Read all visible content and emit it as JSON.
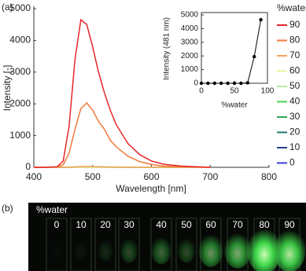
{
  "chart_data": [
    {
      "type": "line",
      "panel_label": "(a)",
      "xlabel": "Wavelength [nm]",
      "ylabel": "Intensity [-]",
      "xlim": [
        400,
        800
      ],
      "xticks": [
        400,
        500,
        600,
        700,
        800
      ],
      "ylim": [
        0,
        5000
      ],
      "yticks": [
        0,
        1000,
        2000,
        3000,
        4000,
        5000
      ],
      "legend_title": "%water",
      "legend": "right",
      "x": [
        400,
        420,
        440,
        450,
        460,
        470,
        480,
        490,
        500,
        510,
        520,
        530,
        540,
        560,
        580,
        600,
        620,
        650,
        700
      ],
      "series": [
        {
          "name": "90",
          "color": "#e8262a",
          "values": [
            0,
            0,
            20,
            200,
            1300,
            3400,
            4650,
            4500,
            3800,
            3000,
            2350,
            1800,
            1350,
            750,
            400,
            200,
            100,
            40,
            0
          ]
        },
        {
          "name": "80",
          "color": "#f07a3c",
          "values": [
            0,
            0,
            10,
            80,
            450,
            1200,
            1850,
            2030,
            1800,
            1450,
            1200,
            850,
            650,
            350,
            180,
            90,
            40,
            15,
            0
          ]
        },
        {
          "name": "70",
          "color": "#f4a15a",
          "values": [
            0,
            0,
            0,
            0,
            5,
            15,
            25,
            30,
            25,
            20,
            15,
            10,
            8,
            5,
            2,
            0,
            0,
            0,
            0
          ]
        },
        {
          "name": "60",
          "color": "#eef29c",
          "values": [
            0,
            0,
            0,
            0,
            0,
            0,
            0,
            0,
            0,
            0,
            0,
            0,
            0,
            0,
            0,
            0,
            0,
            0,
            0
          ]
        },
        {
          "name": "50",
          "color": "#b6ee9e",
          "values": [
            0,
            0,
            0,
            0,
            0,
            0,
            0,
            0,
            0,
            0,
            0,
            0,
            0,
            0,
            0,
            0,
            0,
            0,
            0
          ]
        },
        {
          "name": "40",
          "color": "#4fcf55",
          "values": [
            0,
            0,
            0,
            0,
            0,
            0,
            0,
            0,
            0,
            0,
            0,
            0,
            0,
            0,
            0,
            0,
            0,
            0,
            0
          ]
        },
        {
          "name": "30",
          "color": "#2aa858",
          "values": [
            0,
            0,
            0,
            0,
            0,
            0,
            0,
            0,
            0,
            0,
            0,
            0,
            0,
            0,
            0,
            0,
            0,
            0,
            0
          ]
        },
        {
          "name": "20",
          "color": "#1e7a6a",
          "values": [
            0,
            0,
            0,
            0,
            0,
            0,
            0,
            0,
            0,
            0,
            0,
            0,
            0,
            0,
            0,
            0,
            0,
            0,
            0
          ]
        },
        {
          "name": "10",
          "color": "#283c88",
          "values": [
            0,
            0,
            0,
            0,
            0,
            0,
            0,
            0,
            0,
            0,
            0,
            0,
            0,
            0,
            0,
            0,
            0,
            0,
            0
          ]
        },
        {
          "name": "0",
          "color": "#3a3ad8",
          "values": [
            0,
            0,
            0,
            0,
            0,
            0,
            0,
            0,
            0,
            0,
            0,
            0,
            0,
            0,
            0,
            0,
            0,
            0,
            0
          ]
        }
      ]
    },
    {
      "type": "line",
      "markers": true,
      "xlabel": "%water",
      "ylabel": "Intensity (481 nm)",
      "xlim": [
        0,
        100
      ],
      "xticks": [
        0,
        50,
        100
      ],
      "ylim": [
        0,
        5000
      ],
      "yticks": [
        0,
        1000,
        2000,
        3000,
        4000,
        5000
      ],
      "x": [
        0,
        10,
        20,
        30,
        40,
        50,
        60,
        70,
        80,
        90
      ],
      "series": [
        {
          "color": "#000000",
          "values": [
            0,
            0,
            0,
            0,
            0,
            0,
            0,
            30,
            1950,
            4650
          ]
        }
      ]
    }
  ],
  "photo": {
    "panel_label": "(b)",
    "label": "%water",
    "samples": [
      "0",
      "10",
      "20",
      "30",
      "40",
      "50",
      "60",
      "70",
      "80",
      "90"
    ]
  }
}
